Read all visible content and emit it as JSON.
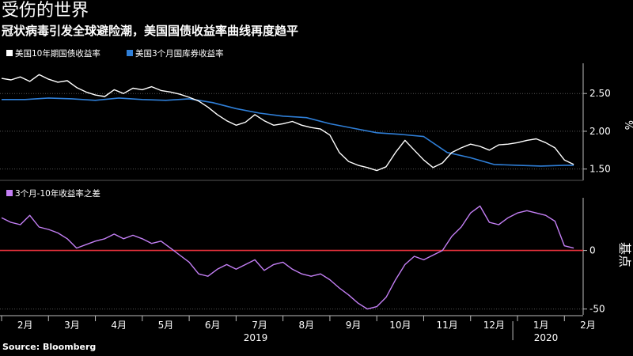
{
  "header": {
    "title": "受伤的世界",
    "subtitle": "冠状病毒引发全球避险潮，美国国债收益率曲线再度趋平"
  },
  "source": "Source: Bloomberg",
  "colors": {
    "background": "#000000",
    "series_10y": "#ffffff",
    "series_3m": "#2f7fd8",
    "spread": "#c47ff5",
    "zero_line": "#e8323c",
    "grid": "#555555",
    "axis": "#bbbbbb"
  },
  "chart_data": [
    {
      "type": "line",
      "legend": [
        "美国10年期国债收益率",
        "美国3个月国库券收益率"
      ],
      "ylabel": "%",
      "yticks": [
        1.5,
        2.0,
        2.5
      ],
      "ytick_labels": [
        "1.50",
        "2.00",
        "2.50"
      ],
      "ylim": [
        1.35,
        2.9
      ],
      "xlim": [
        0,
        12.4
      ],
      "grid": true,
      "legend_placement": "top-left",
      "series": [
        {
          "name": "美国10年期国债收益率",
          "x": [
            0,
            0.2,
            0.4,
            0.6,
            0.8,
            1.0,
            1.2,
            1.4,
            1.6,
            1.8,
            2.0,
            2.2,
            2.4,
            2.6,
            2.8,
            3.0,
            3.2,
            3.4,
            3.6,
            3.8,
            4.0,
            4.2,
            4.4,
            4.6,
            4.8,
            5.0,
            5.2,
            5.4,
            5.6,
            5.8,
            6.0,
            6.2,
            6.4,
            6.6,
            6.8,
            7.0,
            7.2,
            7.4,
            7.6,
            7.8,
            8.0,
            8.2,
            8.4,
            8.6,
            8.8,
            9.0,
            9.2,
            9.4,
            9.6,
            9.8,
            10.0,
            10.2,
            10.4,
            10.6,
            10.8,
            11.0,
            11.2,
            11.4,
            11.6,
            11.8,
            12.0,
            12.2
          ],
          "values": [
            2.7,
            2.68,
            2.72,
            2.66,
            2.75,
            2.69,
            2.65,
            2.67,
            2.58,
            2.52,
            2.48,
            2.46,
            2.55,
            2.5,
            2.57,
            2.55,
            2.59,
            2.54,
            2.52,
            2.49,
            2.45,
            2.4,
            2.32,
            2.22,
            2.14,
            2.08,
            2.12,
            2.22,
            2.14,
            2.08,
            2.1,
            2.13,
            2.08,
            2.05,
            2.03,
            1.95,
            1.72,
            1.6,
            1.55,
            1.52,
            1.48,
            1.53,
            1.72,
            1.88,
            1.75,
            1.62,
            1.52,
            1.58,
            1.72,
            1.78,
            1.83,
            1.8,
            1.75,
            1.82,
            1.83,
            1.85,
            1.88,
            1.9,
            1.85,
            1.78,
            1.62,
            1.56
          ]
        },
        {
          "name": "美国3个月国库券收益率",
          "x": [
            0,
            0.5,
            1.0,
            1.5,
            2.0,
            2.5,
            3.0,
            3.5,
            4.0,
            4.5,
            5.0,
            5.5,
            6.0,
            6.5,
            7.0,
            7.5,
            8.0,
            8.5,
            9.0,
            9.5,
            10.0,
            10.5,
            11.0,
            11.5,
            12.0,
            12.2
          ],
          "values": [
            2.42,
            2.42,
            2.44,
            2.43,
            2.41,
            2.44,
            2.42,
            2.41,
            2.43,
            2.38,
            2.3,
            2.24,
            2.2,
            2.18,
            2.1,
            2.04,
            1.98,
            1.96,
            1.93,
            1.72,
            1.65,
            1.56,
            1.55,
            1.54,
            1.55,
            1.55
          ]
        }
      ]
    },
    {
      "type": "line",
      "legend": [
        "3个月-10年收益率之差"
      ],
      "ylabel": "基点",
      "yticks": [
        -50,
        0
      ],
      "ytick_labels": [
        "-50",
        "0"
      ],
      "ylim": [
        -55,
        45
      ],
      "xlim": [
        0,
        12.4
      ],
      "grid": true,
      "legend_placement": "top-left",
      "zero_line": true,
      "x_month_labels": [
        "2月",
        "3月",
        "4月",
        "5月",
        "6月",
        "7月",
        "8月",
        "9月",
        "10月",
        "11月",
        "12月",
        "1月",
        "2月"
      ],
      "x_year_labels": [
        "2019",
        "2020"
      ],
      "series": [
        {
          "name": "3个月-10年收益率之差",
          "x": [
            0,
            0.2,
            0.4,
            0.6,
            0.8,
            1.0,
            1.2,
            1.4,
            1.6,
            1.8,
            2.0,
            2.2,
            2.4,
            2.6,
            2.8,
            3.0,
            3.2,
            3.4,
            3.6,
            3.8,
            4.0,
            4.2,
            4.4,
            4.6,
            4.8,
            5.0,
            5.2,
            5.4,
            5.6,
            5.8,
            6.0,
            6.2,
            6.4,
            6.6,
            6.8,
            7.0,
            7.2,
            7.4,
            7.6,
            7.8,
            8.0,
            8.2,
            8.4,
            8.6,
            8.8,
            9.0,
            9.2,
            9.4,
            9.6,
            9.8,
            10.0,
            10.2,
            10.4,
            10.6,
            10.8,
            11.0,
            11.2,
            11.4,
            11.6,
            11.8,
            12.0,
            12.2
          ],
          "values": [
            28,
            24,
            22,
            30,
            20,
            18,
            15,
            10,
            2,
            5,
            8,
            10,
            14,
            10,
            13,
            10,
            6,
            8,
            2,
            -4,
            -10,
            -20,
            -22,
            -16,
            -12,
            -16,
            -12,
            -8,
            -17,
            -12,
            -10,
            -16,
            -20,
            -22,
            -20,
            -25,
            -32,
            -38,
            -45,
            -50,
            -48,
            -40,
            -25,
            -12,
            -5,
            -8,
            -4,
            0,
            12,
            20,
            32,
            38,
            24,
            22,
            28,
            32,
            34,
            32,
            30,
            25,
            4,
            2
          ]
        }
      ]
    }
  ]
}
